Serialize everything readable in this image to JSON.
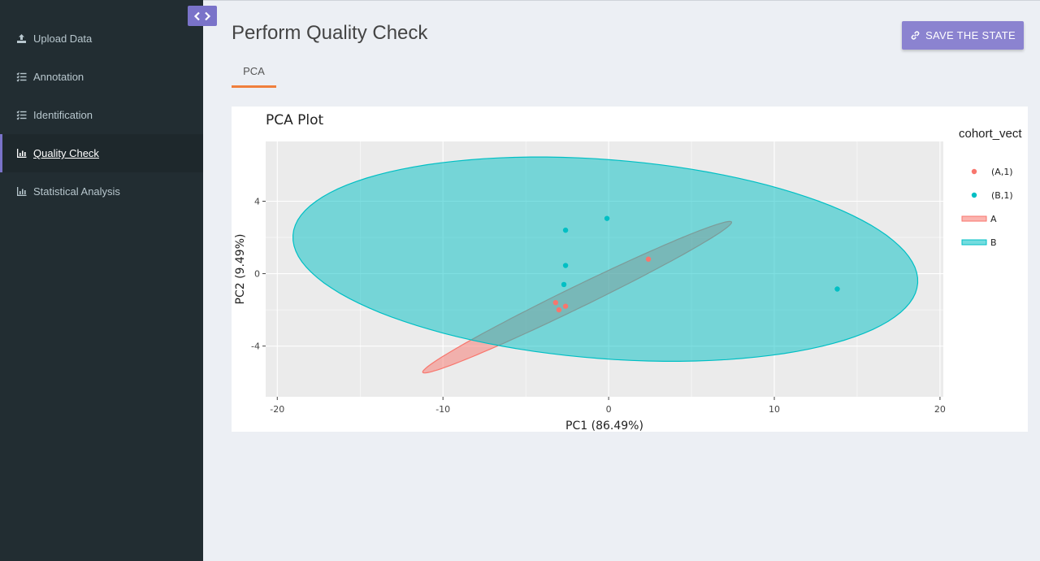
{
  "sidebar": {
    "items": [
      {
        "label": "Upload Data",
        "icon": "upload-icon"
      },
      {
        "label": "Annotation",
        "icon": "list-check-icon"
      },
      {
        "label": "Identification",
        "icon": "list-check-icon"
      },
      {
        "label": "Quality Check",
        "icon": "bar-chart-icon",
        "active": true
      },
      {
        "label": "Statistical Analysis",
        "icon": "bar-chart-icon"
      }
    ]
  },
  "header": {
    "title": "Perform Quality Check",
    "save_label": "SAVE THE STATE"
  },
  "tabs": [
    {
      "label": "PCA",
      "active": true
    }
  ],
  "colors": {
    "accent": "#7a73c9",
    "tab_underline": "#f07f3c",
    "group_a": "#f8766d",
    "group_b": "#00bfc4"
  },
  "chart_data": {
    "type": "scatter",
    "title": "PCA Plot",
    "xlabel": "PC1 (86.49%)",
    "ylabel": "PC2 (9.49%)",
    "xlim": [
      -20.7,
      20.2
    ],
    "ylim": [
      -6.8,
      7.3
    ],
    "xticks": [
      "-20",
      "-10",
      "0",
      "10",
      "20"
    ],
    "xtick_values": [
      -20,
      -10,
      0,
      10,
      20
    ],
    "yticks": [
      "4",
      "0",
      "-4"
    ],
    "ytick_values": [
      4,
      0,
      -4
    ],
    "legend_title": "cohort_vect",
    "legend_position": "right",
    "grid": true,
    "series": [
      {
        "name": "(A,1)",
        "color": "#f8766d",
        "x": [
          -3.2,
          -3.0,
          -2.6,
          2.4
        ],
        "y": [
          -1.6,
          -2.0,
          -1.8,
          0.8
        ]
      },
      {
        "name": "(B,1)",
        "color": "#00bfc4",
        "x": [
          -2.6,
          -2.6,
          -2.7,
          -0.1,
          13.8
        ],
        "y": [
          2.4,
          0.45,
          -0.6,
          3.05,
          -0.85
        ]
      }
    ],
    "ellipses": [
      {
        "name": "A",
        "color": "#f8766d",
        "cx": -1.9,
        "cy": -1.3,
        "rx": 10.2,
        "ry": 0.6,
        "angle_deg": 24
      },
      {
        "name": "B",
        "color": "#00bfc4",
        "cx": -0.2,
        "cy": 0.8,
        "rx": 18.9,
        "ry": 5.5,
        "angle_deg": -4
      }
    ]
  }
}
